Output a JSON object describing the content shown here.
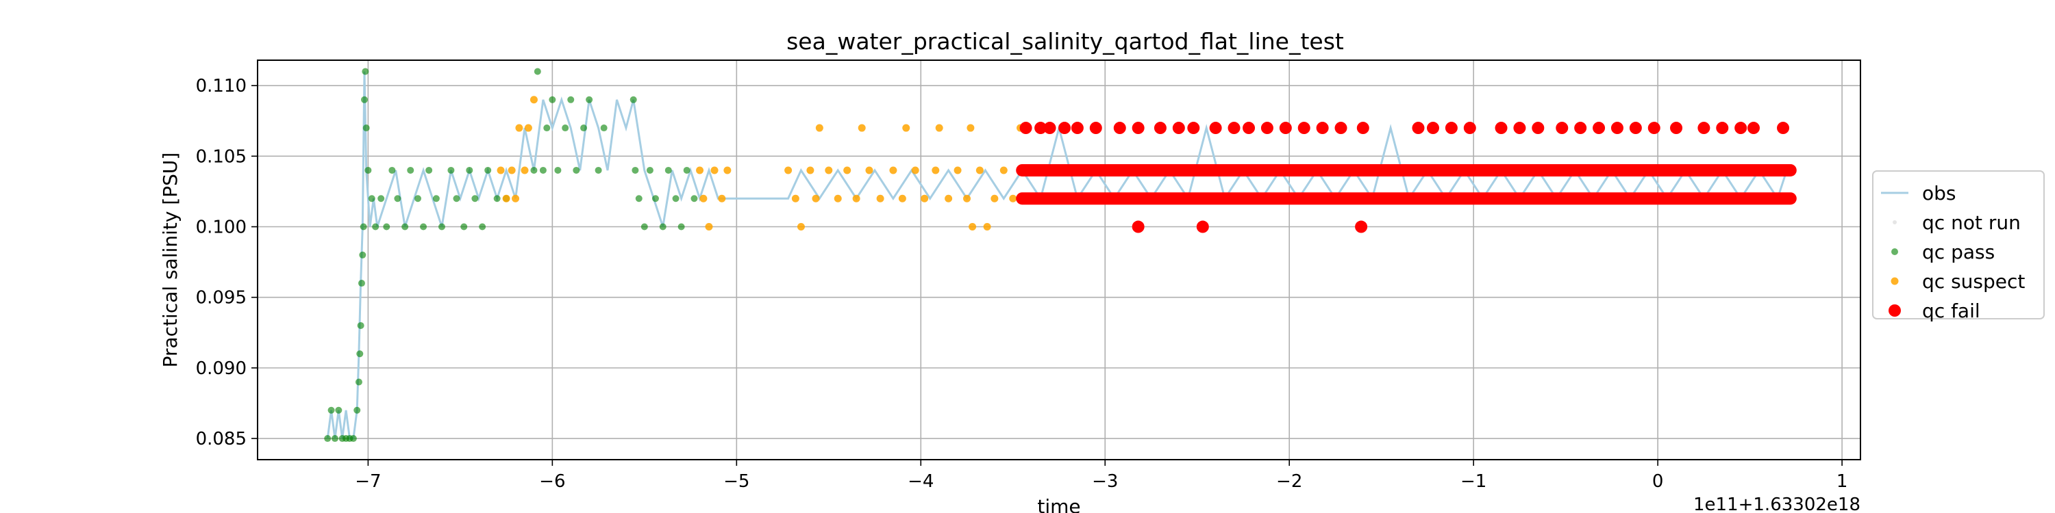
{
  "chart_data": {
    "type": "scatter",
    "title": "sea_water_practical_salinity_qartod_flat_line_test",
    "xlabel": "time",
    "ylabel": "Practical salinity [PSU]",
    "x_offset_label": "1e11+1.63302e18",
    "xlim": [
      -7.6,
      1.1
    ],
    "ylim": [
      0.0835,
      0.1118
    ],
    "xticks": [
      -7,
      -6,
      -5,
      -4,
      -3,
      -2,
      -1,
      0,
      1
    ],
    "xtick_labels": [
      "−7",
      "−6",
      "−5",
      "−4",
      "−3",
      "−2",
      "−1",
      "0",
      "1"
    ],
    "yticks": [
      0.085,
      0.09,
      0.095,
      0.1,
      0.105,
      0.11
    ],
    "ytick_labels": [
      "0.085",
      "0.090",
      "0.095",
      "0.100",
      "0.105",
      "0.110"
    ],
    "grid": true,
    "legend_position": "right",
    "series": [
      {
        "name": "obs",
        "mark": "line",
        "color": "#a6cee3",
        "x": [
          -7.22,
          -7.2,
          -7.18,
          -7.16,
          -7.14,
          -7.12,
          -7.1,
          -7.08,
          -7.06,
          -7.05,
          -7.04,
          -7.03,
          -7.02,
          -7.01,
          -7.0,
          -6.99,
          -6.97,
          -6.95,
          -6.9,
          -6.85,
          -6.8,
          -6.75,
          -6.7,
          -6.65,
          -6.6,
          -6.55,
          -6.5,
          -6.45,
          -6.4,
          -6.35,
          -6.3,
          -6.25,
          -6.2,
          -6.15,
          -6.1,
          -6.05,
          -6.0,
          -5.95,
          -5.9,
          -5.85,
          -5.8,
          -5.75,
          -5.7,
          -5.65,
          -5.6,
          -5.56,
          -5.5,
          -5.45,
          -5.4,
          -5.35,
          -5.3,
          -5.25,
          -5.2,
          -5.15,
          -5.1,
          -4.95,
          -4.8,
          -4.72,
          -4.65,
          -4.55,
          -4.45,
          -4.35,
          -4.25,
          -4.15,
          -4.05,
          -3.95,
          -3.85,
          -3.75,
          -3.65,
          -3.55,
          -3.45,
          -3.35,
          -3.25,
          -3.15,
          -3.05,
          -2.95,
          -2.85,
          -2.75,
          -2.65,
          -2.55,
          -2.45,
          -2.35,
          -2.25,
          -2.15,
          -2.05,
          -1.95,
          -1.85,
          -1.75,
          -1.65,
          -1.55,
          -1.45,
          -1.35,
          -1.25,
          -1.15,
          -1.05,
          -0.95,
          -0.85,
          -0.75,
          -0.65,
          -0.55,
          -0.45,
          -0.35,
          -0.25,
          -0.15,
          -0.05,
          0.05,
          0.15,
          0.25,
          0.35,
          0.45,
          0.55,
          0.65,
          0.7
        ],
        "y": [
          0.085,
          0.087,
          0.085,
          0.087,
          0.085,
          0.087,
          0.085,
          0.085,
          0.087,
          0.091,
          0.096,
          0.1,
          0.111,
          0.104,
          0.102,
          0.1,
          0.102,
          0.1,
          0.102,
          0.104,
          0.1,
          0.102,
          0.104,
          0.102,
          0.1,
          0.104,
          0.102,
          0.104,
          0.102,
          0.104,
          0.102,
          0.104,
          0.102,
          0.107,
          0.104,
          0.109,
          0.107,
          0.109,
          0.107,
          0.104,
          0.109,
          0.107,
          0.104,
          0.109,
          0.107,
          0.109,
          0.104,
          0.102,
          0.1,
          0.104,
          0.102,
          0.104,
          0.102,
          0.104,
          0.102,
          0.102,
          0.102,
          0.102,
          0.104,
          0.102,
          0.104,
          0.102,
          0.104,
          0.102,
          0.104,
          0.102,
          0.104,
          0.102,
          0.104,
          0.102,
          0.104,
          0.102,
          0.107,
          0.102,
          0.104,
          0.102,
          0.104,
          0.102,
          0.104,
          0.102,
          0.107,
          0.102,
          0.104,
          0.102,
          0.104,
          0.102,
          0.104,
          0.102,
          0.104,
          0.102,
          0.107,
          0.102,
          0.104,
          0.102,
          0.104,
          0.102,
          0.104,
          0.102,
          0.104,
          0.102,
          0.104,
          0.102,
          0.104,
          0.102,
          0.104,
          0.102,
          0.104,
          0.102,
          0.104,
          0.102,
          0.104,
          0.102,
          0.104
        ]
      },
      {
        "name": "qc not run",
        "mark": "dot",
        "color": "#d3d3d3",
        "points": []
      },
      {
        "name": "qc pass",
        "mark": "dot",
        "color": "#008000",
        "points": [
          [
            -7.22,
            0.085
          ],
          [
            -7.2,
            0.087
          ],
          [
            -7.18,
            0.085
          ],
          [
            -7.16,
            0.087
          ],
          [
            -7.14,
            0.085
          ],
          [
            -7.12,
            0.085
          ],
          [
            -7.1,
            0.085
          ],
          [
            -7.08,
            0.085
          ],
          [
            -7.06,
            0.087
          ],
          [
            -7.05,
            0.089
          ],
          [
            -7.045,
            0.091
          ],
          [
            -7.04,
            0.093
          ],
          [
            -7.035,
            0.096
          ],
          [
            -7.03,
            0.098
          ],
          [
            -7.025,
            0.1
          ],
          [
            -7.02,
            0.109
          ],
          [
            -7.015,
            0.111
          ],
          [
            -7.01,
            0.107
          ],
          [
            -7.0,
            0.104
          ],
          [
            -6.98,
            0.102
          ],
          [
            -6.96,
            0.1
          ],
          [
            -6.93,
            0.102
          ],
          [
            -6.9,
            0.1
          ],
          [
            -6.87,
            0.104
          ],
          [
            -6.84,
            0.102
          ],
          [
            -6.8,
            0.1
          ],
          [
            -6.77,
            0.104
          ],
          [
            -6.73,
            0.102
          ],
          [
            -6.7,
            0.1
          ],
          [
            -6.67,
            0.104
          ],
          [
            -6.63,
            0.102
          ],
          [
            -6.6,
            0.1
          ],
          [
            -6.55,
            0.104
          ],
          [
            -6.52,
            0.102
          ],
          [
            -6.48,
            0.1
          ],
          [
            -6.45,
            0.104
          ],
          [
            -6.42,
            0.102
          ],
          [
            -6.38,
            0.1
          ],
          [
            -6.35,
            0.104
          ],
          [
            -6.3,
            0.102
          ],
          [
            -6.25,
            0.102
          ],
          [
            -6.1,
            0.104
          ],
          [
            -6.08,
            0.111
          ],
          [
            -6.05,
            0.104
          ],
          [
            -6.03,
            0.107
          ],
          [
            -6.0,
            0.109
          ],
          [
            -5.97,
            0.104
          ],
          [
            -5.93,
            0.107
          ],
          [
            -5.9,
            0.109
          ],
          [
            -5.87,
            0.104
          ],
          [
            -5.83,
            0.107
          ],
          [
            -5.8,
            0.109
          ],
          [
            -5.75,
            0.104
          ],
          [
            -5.72,
            0.107
          ],
          [
            -5.56,
            0.109
          ],
          [
            -5.55,
            0.104
          ],
          [
            -5.53,
            0.102
          ],
          [
            -5.5,
            0.1
          ],
          [
            -5.47,
            0.104
          ],
          [
            -5.44,
            0.102
          ],
          [
            -5.4,
            0.1
          ],
          [
            -5.37,
            0.104
          ],
          [
            -5.33,
            0.102
          ],
          [
            -5.3,
            0.1
          ],
          [
            -5.27,
            0.104
          ],
          [
            -5.23,
            0.102
          ]
        ]
      },
      {
        "name": "qc suspect",
        "mark": "dot",
        "color": "#ffa500",
        "points": [
          [
            -6.28,
            0.104
          ],
          [
            -6.25,
            0.102
          ],
          [
            -6.22,
            0.104
          ],
          [
            -6.2,
            0.102
          ],
          [
            -6.18,
            0.107
          ],
          [
            -6.15,
            0.104
          ],
          [
            -6.13,
            0.107
          ],
          [
            -6.1,
            0.109
          ],
          [
            -5.2,
            0.104
          ],
          [
            -5.18,
            0.102
          ],
          [
            -5.15,
            0.1
          ],
          [
            -5.12,
            0.104
          ],
          [
            -5.08,
            0.102
          ],
          [
            -5.05,
            0.104
          ],
          [
            -4.72,
            0.104
          ],
          [
            -4.68,
            0.102
          ],
          [
            -4.65,
            0.1
          ],
          [
            -4.6,
            0.104
          ],
          [
            -4.57,
            0.102
          ],
          [
            -4.55,
            0.107
          ],
          [
            -4.5,
            0.104
          ],
          [
            -4.45,
            0.102
          ],
          [
            -4.4,
            0.104
          ],
          [
            -4.35,
            0.102
          ],
          [
            -4.32,
            0.107
          ],
          [
            -4.28,
            0.104
          ],
          [
            -4.22,
            0.102
          ],
          [
            -4.15,
            0.104
          ],
          [
            -4.1,
            0.102
          ],
          [
            -4.08,
            0.107
          ],
          [
            -4.03,
            0.104
          ],
          [
            -3.98,
            0.102
          ],
          [
            -3.92,
            0.104
          ],
          [
            -3.9,
            0.107
          ],
          [
            -3.85,
            0.102
          ],
          [
            -3.8,
            0.104
          ],
          [
            -3.75,
            0.102
          ],
          [
            -3.73,
            0.107
          ],
          [
            -3.72,
            0.1
          ],
          [
            -3.68,
            0.104
          ],
          [
            -3.64,
            0.1
          ],
          [
            -3.6,
            0.102
          ],
          [
            -3.55,
            0.104
          ],
          [
            -3.5,
            0.102
          ],
          [
            -3.46,
            0.107
          ]
        ]
      },
      {
        "name": "qc fail",
        "mark": "dot",
        "color": "#ff0000",
        "points": [
          [
            -3.43,
            0.107
          ],
          [
            -3.35,
            0.107
          ],
          [
            -3.3,
            0.107
          ],
          [
            -3.22,
            0.107
          ],
          [
            -3.15,
            0.107
          ],
          [
            -3.05,
            0.107
          ],
          [
            -2.92,
            0.107
          ],
          [
            -2.82,
            0.107
          ],
          [
            -2.7,
            0.107
          ],
          [
            -2.6,
            0.107
          ],
          [
            -2.52,
            0.107
          ],
          [
            -2.4,
            0.107
          ],
          [
            -2.3,
            0.107
          ],
          [
            -2.22,
            0.107
          ],
          [
            -2.12,
            0.107
          ],
          [
            -2.02,
            0.107
          ],
          [
            -1.92,
            0.107
          ],
          [
            -1.82,
            0.107
          ],
          [
            -1.72,
            0.107
          ],
          [
            -1.6,
            0.107
          ],
          [
            -1.3,
            0.107
          ],
          [
            -1.22,
            0.107
          ],
          [
            -1.12,
            0.107
          ],
          [
            -1.02,
            0.107
          ],
          [
            -0.85,
            0.107
          ],
          [
            -0.75,
            0.107
          ],
          [
            -0.65,
            0.107
          ],
          [
            -0.52,
            0.107
          ],
          [
            -0.42,
            0.107
          ],
          [
            -0.32,
            0.107
          ],
          [
            -0.22,
            0.107
          ],
          [
            -0.12,
            0.107
          ],
          [
            -0.02,
            0.107
          ],
          [
            0.1,
            0.107
          ],
          [
            0.25,
            0.107
          ],
          [
            0.35,
            0.107
          ],
          [
            0.45,
            0.107
          ],
          [
            0.52,
            0.107
          ],
          [
            0.68,
            0.107
          ],
          [
            -2.82,
            0.1
          ],
          [
            -2.47,
            0.1
          ],
          [
            -1.61,
            0.1
          ]
        ]
      }
    ],
    "bands": [
      {
        "series": "qc fail",
        "x_range": [
          -3.45,
          0.72
        ],
        "y": 0.104
      },
      {
        "series": "qc fail",
        "x_range": [
          -3.45,
          0.72
        ],
        "y": 0.102
      }
    ]
  }
}
